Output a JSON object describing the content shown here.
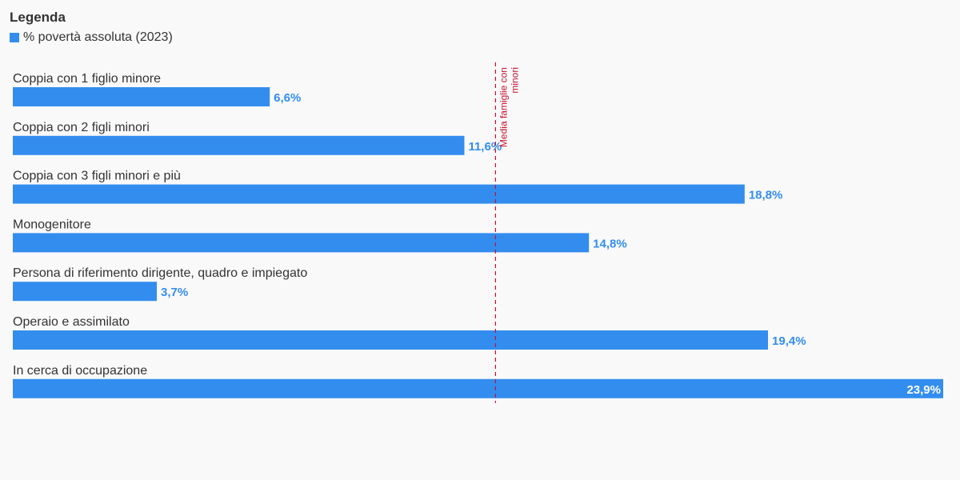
{
  "legend": {
    "title": "Legenda",
    "entry": "% povertà assoluta (2023)"
  },
  "colors": {
    "bar": "#338def",
    "reference_line": "#c8102e",
    "text": "#333333",
    "background": "#f9f9f9"
  },
  "chart_data": {
    "type": "bar",
    "orientation": "horizontal",
    "categories": [
      "Coppia con 1 figlio minore",
      "Coppia con 2 figli minori",
      "Coppia con 3 figli minori e più",
      "Monogenitore",
      "Persona di riferimento dirigente, quadro e impiegato",
      "Operaio e assimilato",
      "In cerca di occupazione"
    ],
    "values": [
      6.6,
      11.6,
      18.8,
      14.8,
      3.7,
      19.4,
      23.9
    ],
    "value_labels": [
      "6,6%",
      "11,6%",
      "18,8%",
      "14,8%",
      "3,7%",
      "19,4%",
      "23,9%"
    ],
    "series": [
      {
        "name": "% povertà assoluta (2023)",
        "values": [
          6.6,
          11.6,
          18.8,
          14.8,
          3.7,
          19.4,
          23.9
        ]
      }
    ],
    "xlim": [
      0,
      23.9
    ],
    "reference_line": {
      "value": 12.4,
      "label": "Media famiglie con minori"
    },
    "grid": false,
    "legend_position": "top-left"
  }
}
